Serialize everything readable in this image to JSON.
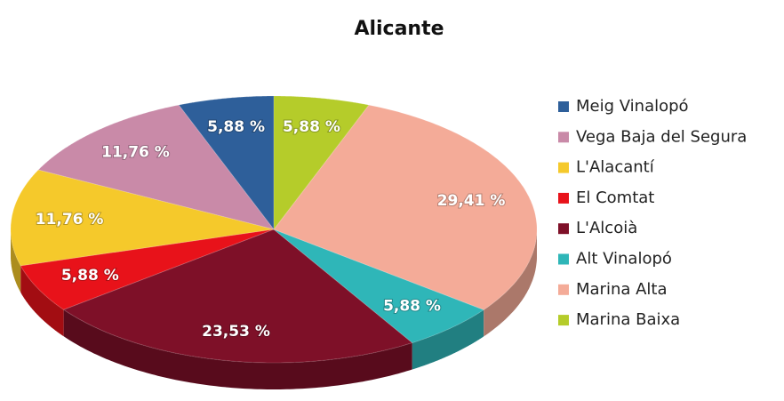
{
  "chart_data": {
    "type": "pie",
    "title": "Alicante",
    "categories": [
      "Meig Vinalopó",
      "Vega Baja del Segura",
      "L'Alacantí",
      "El Comtat",
      "L'Alcoià",
      "Alt Vinalopó",
      "Marina Alta",
      "Marina Baixa"
    ],
    "values": [
      5.88,
      11.76,
      11.76,
      5.88,
      23.53,
      5.88,
      29.41,
      5.88
    ],
    "value_labels": [
      "5,88 %",
      "11,76 %",
      "11,76 %",
      "5,88 %",
      "23,53 %",
      "5,88 %",
      "29,41 %",
      "5,88 %"
    ],
    "colors": [
      "#2e5f9a",
      "#c98aa8",
      "#f5c92b",
      "#e8121a",
      "#7e1028",
      "#2fb6b8",
      "#f4ab98",
      "#b5cc2a"
    ],
    "legend": "right"
  }
}
